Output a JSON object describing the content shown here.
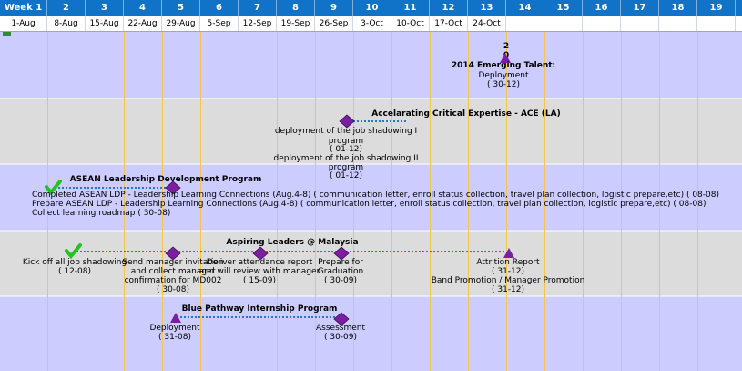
{
  "weeks": [
    "Week 1",
    "2",
    "3",
    "4",
    "5",
    "6",
    "7",
    "8",
    "9",
    "10",
    "11",
    "12",
    "13",
    "14",
    "15",
    "16",
    "17",
    "18",
    "19"
  ],
  "dates": [
    "1-Aug",
    "8-Aug",
    "15-Aug",
    "22-Aug",
    "29-Aug",
    "5-Sep",
    "12-Sep",
    "19-Sep",
    "26-Sep",
    "3-Oct",
    "10-Oct",
    "17-Oct",
    "24-Oct",
    "",
    "",
    "",
    "",
    "",
    ""
  ],
  "colors": {
    "header": "#1173c8",
    "band_blue": "#ccccff",
    "band_gray": "#dcdcdc",
    "gridline": "#f2c64a",
    "milestone": "#7b1fa2",
    "done": "#22c322",
    "connector": "#1e7ad6"
  },
  "rows": [
    {
      "title": "",
      "milestones": [
        {
          "shape": "triangle",
          "labels": [
            "2",
            "0"
          ],
          "label_pos": "above"
        },
        {
          "shape": "none",
          "labels": [
            "2014 Emerging Talent:"
          ],
          "bold": true
        },
        {
          "shape": "none",
          "labels": [
            "Deployment",
            "( 30-12)"
          ]
        }
      ],
      "lines": []
    },
    {
      "title": "Accelarating Critical Expertise - ACE (LA)",
      "milestones": [
        {
          "shape": "diamond",
          "labels": [
            "deployment of the job shadowing I",
            "program",
            "( 01-12)",
            "deployment of the job shadowing II",
            "program",
            "( 01-12)"
          ]
        }
      ],
      "lines": []
    },
    {
      "title": "ASEAN Leadership Development Program",
      "milestones": [
        {
          "shape": "check",
          "labels": []
        },
        {
          "shape": "diamond",
          "labels": []
        }
      ],
      "lines": [
        "Completed ASEAN LDP - Leadership Learning Connections (Aug.4-8) ( communication letter, enroll status collection, travel plan collection, logistic prepare,etc) ( 08-08)",
        "Prepare ASEAN LDP - Leadership Learning Connections (Aug.4-8) ( communication letter, enroll status collection, travel plan collection, logistic prepare,etc) ( 08-08)",
        "Collect learning roadmap ( 30-08)"
      ]
    },
    {
      "title": "Aspiring Leaders @ Malaysia",
      "milestones": [
        {
          "shape": "check",
          "labels": [
            "Kick off all job shadowing",
            "( 12-08)"
          ]
        },
        {
          "shape": "diamond",
          "labels": [
            "Send manager invitation",
            "and collect manager",
            "confirmation for MD002",
            "( 30-08)"
          ]
        },
        {
          "shape": "diamond",
          "labels": [
            "Deliver attendance report",
            "and will review with manager",
            "( 15-09)"
          ]
        },
        {
          "shape": "diamond",
          "labels": [
            "Prepare for",
            "Graduation",
            "( 30-09)"
          ]
        },
        {
          "shape": "triangle",
          "labels": [
            "Attrition Report",
            "( 31-12)",
            "Band Promotion / Manager Promotion",
            "( 31-12)"
          ]
        }
      ],
      "lines": []
    },
    {
      "title": "Blue Pathway Internship Program",
      "milestones": [
        {
          "shape": "triangle",
          "labels": [
            "Deployment",
            "( 31-08)"
          ]
        },
        {
          "shape": "diamond",
          "labels": [
            "Assessment",
            "( 30-09)"
          ]
        }
      ],
      "lines": []
    }
  ]
}
